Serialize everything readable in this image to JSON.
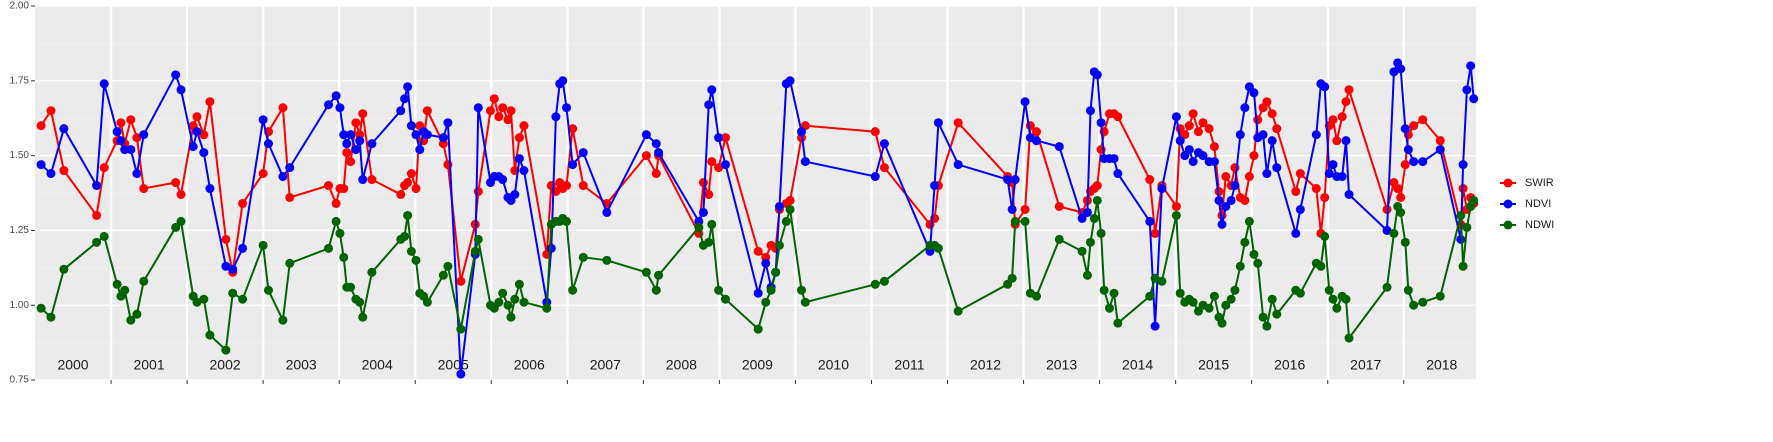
{
  "chart_data": {
    "type": "line",
    "x": [
      2000.08,
      2000.21,
      2000.38,
      2000.81,
      2000.91,
      2001.08,
      2001.13,
      2001.18,
      2001.26,
      2001.34,
      2001.43,
      2001.85,
      2001.92,
      2002.08,
      2002.13,
      2002.22,
      2002.3,
      2002.51,
      2002.6,
      2002.73,
      2003.0,
      2003.07,
      2003.26,
      2003.35,
      2003.86,
      2003.96,
      2004.01,
      2004.06,
      2004.1,
      2004.15,
      2004.22,
      2004.27,
      2004.31,
      2004.43,
      2004.81,
      2004.86,
      2004.9,
      2004.95,
      2005.01,
      2005.06,
      2005.11,
      2005.16,
      2005.37,
      2005.43,
      2005.6,
      2005.79,
      2005.83,
      2005.99,
      2006.04,
      2006.1,
      2006.15,
      2006.22,
      2006.26,
      2006.31,
      2006.37,
      2006.43,
      2006.73,
      2006.79,
      2006.85,
      2006.9,
      2006.94,
      2006.99,
      2007.07,
      2007.21,
      2007.52,
      2008.04,
      2008.17,
      2008.2,
      2008.73,
      2008.79,
      2008.86,
      2008.9,
      2008.99,
      2009.08,
      2009.51,
      2009.61,
      2009.68,
      2009.74,
      2009.79,
      2009.88,
      2009.93,
      2010.08,
      2010.13,
      2011.05,
      2011.17,
      2011.77,
      2011.83,
      2011.88,
      2012.14,
      2012.79,
      2012.85,
      2012.89,
      2013.02,
      2013.09,
      2013.17,
      2013.47,
      2013.77,
      2013.84,
      2013.88,
      2013.93,
      2013.97,
      2014.02,
      2014.06,
      2014.13,
      2014.19,
      2014.24,
      2014.66,
      2014.73,
      2014.82,
      2015.01,
      2015.06,
      2015.12,
      2015.18,
      2015.23,
      2015.3,
      2015.36,
      2015.44,
      2015.51,
      2015.57,
      2015.61,
      2015.66,
      2015.73,
      2015.78,
      2015.85,
      2015.91,
      2015.97,
      2016.03,
      2016.08,
      2016.15,
      2016.2,
      2016.27,
      2016.33,
      2016.58,
      2016.64,
      2016.85,
      2016.91,
      2016.96,
      2017.02,
      2017.07,
      2017.12,
      2017.19,
      2017.24,
      2017.28,
      2017.78,
      2017.87,
      2017.92,
      2017.96,
      2018.02,
      2018.06,
      2018.13,
      2018.25,
      2018.48,
      2018.75,
      2018.78,
      2018.83,
      2018.88,
      2018.92
    ],
    "series": [
      {
        "name": "SWIR",
        "color": "#ff0000",
        "values": [
          1.6,
          1.65,
          1.45,
          1.3,
          1.46,
          1.55,
          1.61,
          1.54,
          1.62,
          1.56,
          1.39,
          1.41,
          1.37,
          1.6,
          1.63,
          1.57,
          1.68,
          1.22,
          1.11,
          1.34,
          1.44,
          1.58,
          1.66,
          1.36,
          1.4,
          1.34,
          1.39,
          1.39,
          1.51,
          1.48,
          1.61,
          1.57,
          1.64,
          1.42,
          1.37,
          1.4,
          1.41,
          1.44,
          1.39,
          1.6,
          1.55,
          1.65,
          1.54,
          1.47,
          1.08,
          1.27,
          1.38,
          1.65,
          1.69,
          1.63,
          1.66,
          1.62,
          1.65,
          1.45,
          1.56,
          1.6,
          1.17,
          1.4,
          1.38,
          1.41,
          1.39,
          1.4,
          1.59,
          1.4,
          1.34,
          1.5,
          1.44,
          1.5,
          1.24,
          1.41,
          1.37,
          1.48,
          1.46,
          1.56,
          1.18,
          1.16,
          1.2,
          1.19,
          1.32,
          1.34,
          1.35,
          1.56,
          1.6,
          1.58,
          1.46,
          1.27,
          1.29,
          1.4,
          1.61,
          1.43,
          1.41,
          1.27,
          1.32,
          1.6,
          1.58,
          1.33,
          1.31,
          1.35,
          1.38,
          1.39,
          1.4,
          1.52,
          1.58,
          1.64,
          1.64,
          1.63,
          1.42,
          1.24,
          1.4,
          1.33,
          1.59,
          1.57,
          1.6,
          1.64,
          1.58,
          1.61,
          1.59,
          1.53,
          1.38,
          1.3,
          1.43,
          1.4,
          1.46,
          1.36,
          1.35,
          1.43,
          1.5,
          1.62,
          1.66,
          1.68,
          1.64,
          1.59,
          1.38,
          1.44,
          1.39,
          1.24,
          1.36,
          1.6,
          1.62,
          1.55,
          1.63,
          1.68,
          1.72,
          1.32,
          1.41,
          1.39,
          1.36,
          1.47,
          1.57,
          1.6,
          1.62,
          1.55,
          1.27,
          1.39,
          1.32,
          1.36,
          1.34
        ]
      },
      {
        "name": "NDVI",
        "color": "#0000ff",
        "values": [
          1.47,
          1.44,
          1.59,
          1.4,
          1.74,
          1.58,
          1.55,
          1.52,
          1.52,
          1.44,
          1.57,
          1.77,
          1.72,
          1.53,
          1.58,
          1.51,
          1.39,
          1.13,
          1.12,
          1.19,
          1.62,
          1.54,
          1.43,
          1.46,
          1.67,
          1.7,
          1.66,
          1.57,
          1.54,
          1.57,
          1.52,
          1.55,
          1.42,
          1.54,
          1.65,
          1.69,
          1.73,
          1.6,
          1.57,
          1.52,
          1.58,
          1.57,
          1.56,
          1.61,
          0.77,
          1.17,
          1.66,
          1.41,
          1.43,
          1.43,
          1.42,
          1.36,
          1.35,
          1.37,
          1.49,
          1.45,
          1.01,
          1.19,
          1.63,
          1.74,
          1.75,
          1.66,
          1.47,
          1.51,
          1.31,
          1.57,
          1.54,
          1.51,
          1.28,
          1.31,
          1.67,
          1.72,
          1.56,
          1.47,
          1.04,
          1.14,
          1.06,
          1.11,
          1.33,
          1.74,
          1.75,
          1.58,
          1.48,
          1.43,
          1.54,
          1.18,
          1.4,
          1.61,
          1.47,
          1.42,
          1.32,
          1.42,
          1.68,
          1.56,
          1.55,
          1.53,
          1.29,
          1.31,
          1.65,
          1.78,
          1.77,
          1.61,
          1.49,
          1.49,
          1.49,
          1.44,
          1.28,
          0.93,
          1.39,
          1.63,
          1.55,
          1.5,
          1.52,
          1.48,
          1.51,
          1.5,
          1.48,
          1.48,
          1.35,
          1.27,
          1.33,
          1.35,
          1.4,
          1.57,
          1.66,
          1.73,
          1.71,
          1.56,
          1.57,
          1.44,
          1.55,
          1.46,
          1.24,
          1.32,
          1.57,
          1.74,
          1.73,
          1.44,
          1.47,
          1.43,
          1.43,
          1.55,
          1.37,
          1.25,
          1.78,
          1.81,
          1.79,
          1.59,
          1.52,
          1.48,
          1.48,
          1.52,
          1.22,
          1.47,
          1.72,
          1.8,
          1.69
        ]
      },
      {
        "name": "NDWI",
        "color": "#006400",
        "values": [
          0.99,
          0.96,
          1.12,
          1.21,
          1.23,
          1.07,
          1.03,
          1.05,
          0.95,
          0.97,
          1.08,
          1.26,
          1.28,
          1.03,
          1.01,
          1.02,
          0.9,
          0.85,
          1.04,
          1.02,
          1.2,
          1.05,
          0.95,
          1.14,
          1.19,
          1.28,
          1.24,
          1.16,
          1.06,
          1.06,
          1.02,
          1.01,
          0.96,
          1.11,
          1.22,
          1.23,
          1.3,
          1.18,
          1.15,
          1.04,
          1.03,
          1.01,
          1.1,
          1.13,
          0.92,
          1.18,
          1.22,
          1.0,
          0.99,
          1.01,
          1.04,
          1.0,
          0.96,
          1.02,
          1.07,
          1.01,
          0.99,
          1.27,
          1.28,
          1.28,
          1.29,
          1.28,
          1.05,
          1.16,
          1.15,
          1.11,
          1.05,
          1.1,
          1.26,
          1.2,
          1.21,
          1.27,
          1.05,
          1.02,
          0.92,
          1.01,
          1.05,
          1.11,
          1.2,
          1.28,
          1.32,
          1.05,
          1.01,
          1.07,
          1.08,
          1.2,
          1.2,
          1.19,
          0.98,
          1.07,
          1.09,
          1.28,
          1.28,
          1.04,
          1.03,
          1.22,
          1.18,
          1.1,
          1.21,
          1.29,
          1.35,
          1.24,
          1.05,
          0.99,
          1.04,
          0.94,
          1.03,
          1.09,
          1.08,
          1.3,
          1.04,
          1.01,
          1.02,
          1.01,
          0.98,
          1.0,
          0.99,
          1.03,
          0.96,
          0.94,
          1.0,
          1.02,
          1.05,
          1.13,
          1.21,
          1.28,
          1.17,
          1.14,
          0.96,
          0.93,
          1.02,
          0.97,
          1.05,
          1.04,
          1.14,
          1.13,
          1.23,
          1.05,
          1.02,
          0.99,
          1.03,
          1.02,
          0.89,
          1.06,
          1.24,
          1.33,
          1.31,
          1.21,
          1.05,
          1.0,
          1.01,
          1.03,
          1.3,
          1.13,
          1.26,
          1.33,
          1.35
        ]
      }
    ],
    "xlim": [
      2000,
      2018.95
    ],
    "xticks": [
      2001,
      2002,
      2003,
      2004,
      2005,
      2006,
      2007,
      2008,
      2009,
      2010,
      2011,
      2012,
      2013,
      2014,
      2015,
      2016,
      2017,
      2018
    ],
    "year_labels": [
      {
        "x": 2000.5,
        "label": "2000"
      },
      {
        "x": 2001.5,
        "label": "2001"
      },
      {
        "x": 2002.5,
        "label": "2002"
      },
      {
        "x": 2003.5,
        "label": "2003"
      },
      {
        "x": 2004.5,
        "label": "2004"
      },
      {
        "x": 2005.5,
        "label": "2005"
      },
      {
        "x": 2006.5,
        "label": "2006"
      },
      {
        "x": 2007.5,
        "label": "2007"
      },
      {
        "x": 2008.5,
        "label": "2008"
      },
      {
        "x": 2009.5,
        "label": "2009"
      },
      {
        "x": 2010.5,
        "label": "2010"
      },
      {
        "x": 2011.5,
        "label": "2011"
      },
      {
        "x": 2012.5,
        "label": "2012"
      },
      {
        "x": 2013.5,
        "label": "2013"
      },
      {
        "x": 2014.5,
        "label": "2014"
      },
      {
        "x": 2015.5,
        "label": "2015"
      },
      {
        "x": 2016.5,
        "label": "2016"
      },
      {
        "x": 2017.5,
        "label": "2017"
      },
      {
        "x": 2018.5,
        "label": "2018"
      }
    ],
    "ylim": [
      0.75,
      2.0
    ],
    "yticks": [
      {
        "value": 0.75,
        "label": "0.75"
      },
      {
        "value": 1.0,
        "label": "1.00"
      },
      {
        "value": 1.25,
        "label": "1.25"
      },
      {
        "value": 1.5,
        "label": "1.50"
      },
      {
        "value": 1.75,
        "label": "1.75"
      },
      {
        "value": 2.0,
        "label": "2.00"
      }
    ],
    "grid": true,
    "legend": "right"
  }
}
